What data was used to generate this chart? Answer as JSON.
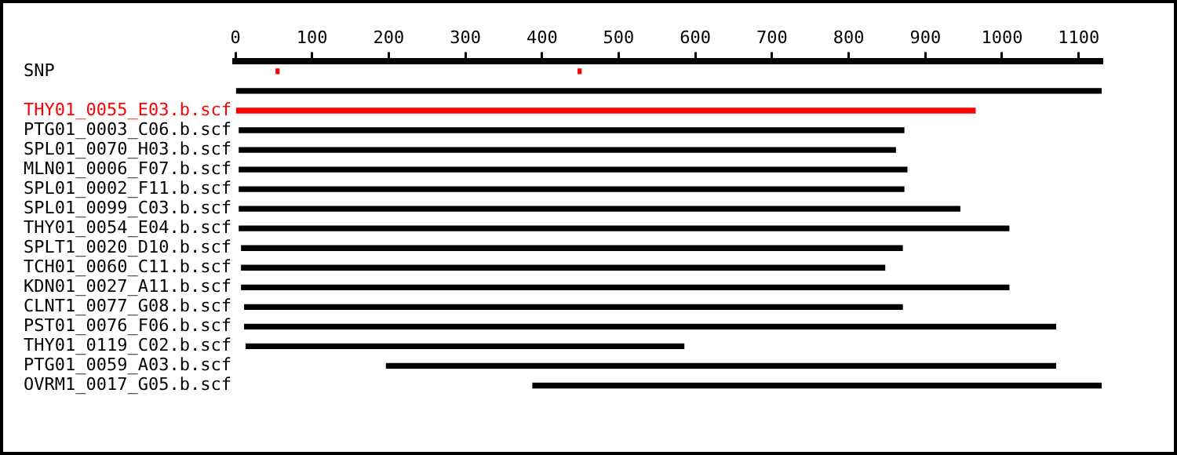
{
  "chart_data": {
    "type": "bar",
    "orientation": "horizontal",
    "categories": [
      "SNP",
      null,
      "THY01_0055_E03.b.scf",
      "PTG01_0003_C06.b.scf",
      "SPL01_0070_H03.b.scf",
      "MLN01_0006_F07.b.scf",
      "SPL01_0002_F11.b.scf",
      "SPL01_0099_C03.b.scf",
      "THY01_0054_E04.b.scf",
      "SPLT1_0020_D10.b.scf",
      "TCH01_0060_C11.b.scf",
      "KDN01_0027_A11.b.scf",
      "CLNT1_0077_G08.b.scf",
      "PST01_0076_F06.b.scf",
      "THY01_0119_C02.b.scf",
      "PTG01_0059_A03.b.scf",
      "OVRM1_0017_G05.b.scf"
    ],
    "series": [
      {
        "color": "#ff0000",
        "values": [
          4,
          null,
          null,
          null,
          null,
          null,
          null,
          null,
          null,
          null,
          null,
          null,
          null,
          null,
          null,
          null,
          null
        ],
        "base": [
          53,
          null,
          null,
          null,
          null,
          null,
          null,
          null,
          null,
          null,
          null,
          null,
          null,
          null,
          null,
          null,
          null
        ]
      },
      {
        "color": "#ff0000",
        "values": [
          4,
          null,
          null,
          null,
          null,
          null,
          null,
          null,
          null,
          null,
          null,
          null,
          null,
          null,
          null,
          null,
          null
        ],
        "base": [
          447,
          null,
          null,
          null,
          null,
          null,
          null,
          null,
          null,
          null,
          null,
          null,
          null,
          null,
          null,
          null,
          null
        ]
      },
      {
        "colors": [
          null,
          "#000000",
          "#ff0000",
          "#000000",
          "#000000",
          "#000000",
          "#000000",
          "#000000",
          "#000000",
          "#000000",
          "#000000",
          "#000000",
          "#000000",
          "#000000",
          "#000000",
          "#000000",
          "#000000"
        ],
        "values": [
          null,
          1130,
          965,
          867,
          856,
          871,
          867,
          940,
          1004,
          862,
          839,
          1001,
          858,
          1058,
          571,
          873,
          742
        ],
        "base": [
          null,
          0,
          0,
          5,
          5,
          5,
          5,
          5,
          5,
          8,
          8,
          8,
          12,
          12,
          14,
          197,
          388
        ]
      }
    ],
    "xlim": [
      0,
      1130
    ],
    "xticks": [
      0,
      100,
      200,
      300,
      400,
      500,
      600,
      700,
      800,
      900,
      1000,
      1100
    ],
    "grid": false,
    "legend": false
  }
}
